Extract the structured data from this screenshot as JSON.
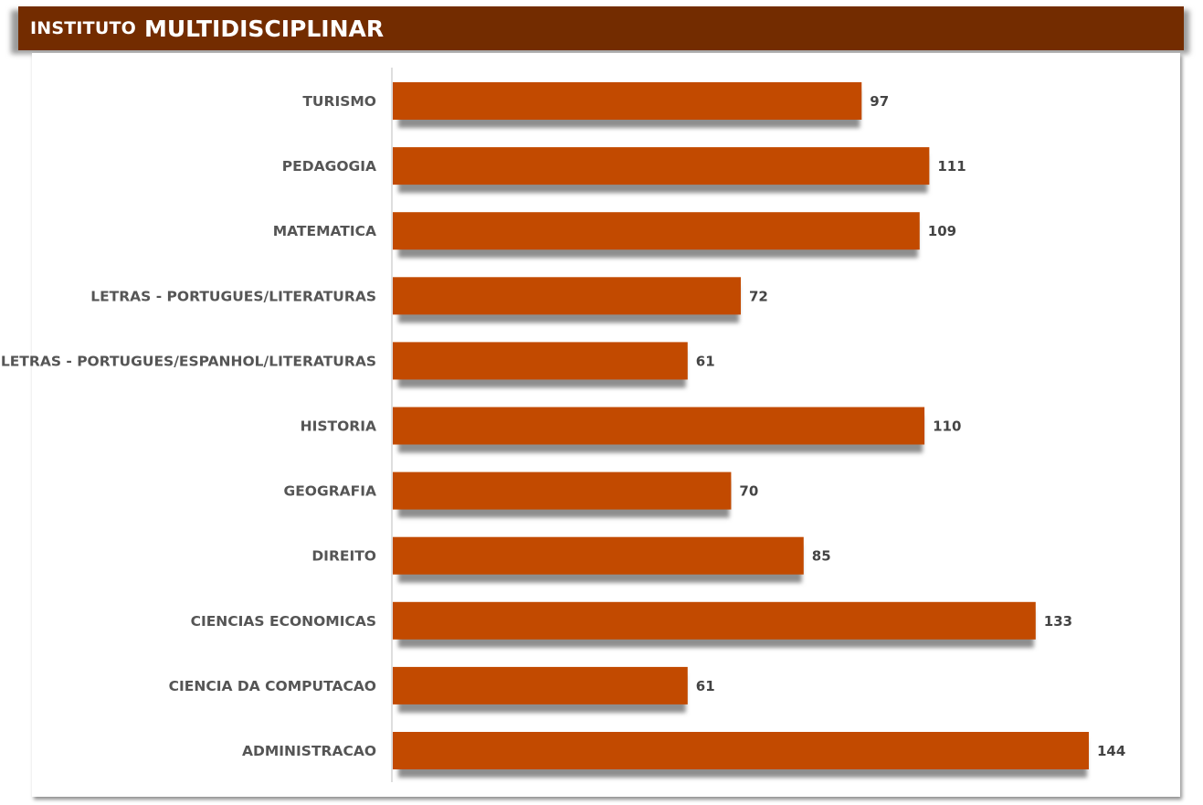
{
  "header": {
    "title_prefix": "INSTITUTO",
    "title_main": "MULTIDISCIPLINAR"
  },
  "colors": {
    "header_bg": "#732c00",
    "bar": "#c24a00",
    "bar_shadow": "#8e8e8e"
  },
  "chart_data": {
    "type": "bar",
    "orientation": "horizontal",
    "title": "INSTITUTO MULTIDISCIPLINAR",
    "categories": [
      "TURISMO",
      "PEDAGOGIA",
      "MATEMATICA",
      "LETRAS - PORTUGUES/LITERATURAS",
      "LETRAS - PORTUGUES/ESPANHOL/LITERATURAS",
      "HISTORIA",
      "GEOGRAFIA",
      "DIREITO",
      "CIENCIAS ECONOMICAS",
      "CIENCIA DA COMPUTACAO",
      "ADMINISTRACAO"
    ],
    "values": [
      97,
      111,
      109,
      72,
      61,
      110,
      70,
      85,
      133,
      61,
      144
    ],
    "xlim": [
      0,
      144
    ],
    "grid": false,
    "legend": "none",
    "data_labels": true
  }
}
